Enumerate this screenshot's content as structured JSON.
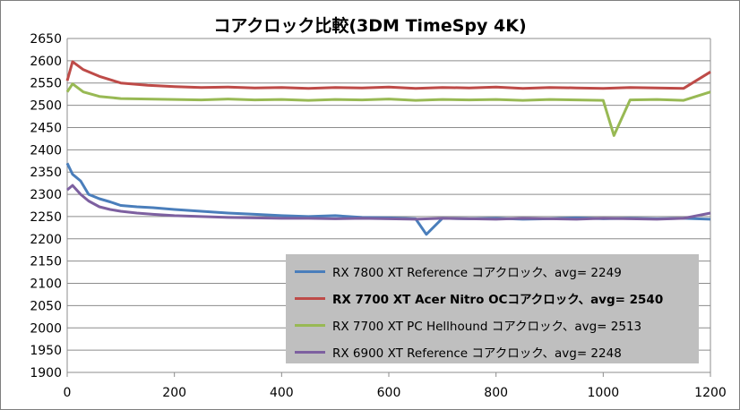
{
  "chart_data": {
    "type": "line",
    "title": "コアクロック比較(3DM TimeSpy 4K)",
    "xlabel": "",
    "ylabel": "",
    "xlim": [
      0,
      1200
    ],
    "ylim": [
      1900,
      2650
    ],
    "x_ticks": [
      "0",
      "200",
      "400",
      "600",
      "800",
      "1000",
      "1200"
    ],
    "y_ticks": [
      "2650",
      "2600",
      "2550",
      "2500",
      "2450",
      "2400",
      "2350",
      "2300",
      "2250",
      "2200",
      "2150",
      "2100",
      "2050",
      "2000",
      "1950",
      "1900"
    ],
    "grid": "horizontal",
    "legend_position": "bottom-right",
    "series": [
      {
        "name": "RX 7800 XT Reference コアクロック、avg= 2249",
        "color": "#4a7ebb",
        "bold": false,
        "x": [
          0,
          10,
          25,
          40,
          60,
          80,
          100,
          130,
          160,
          200,
          250,
          300,
          350,
          400,
          450,
          500,
          550,
          600,
          650,
          670,
          700,
          750,
          800,
          850,
          900,
          950,
          1000,
          1050,
          1100,
          1150,
          1200
        ],
        "y": [
          2370,
          2345,
          2330,
          2300,
          2290,
          2283,
          2275,
          2272,
          2270,
          2266,
          2262,
          2258,
          2255,
          2252,
          2250,
          2252,
          2248,
          2247,
          2245,
          2210,
          2246,
          2245,
          2246,
          2244,
          2245,
          2247,
          2245,
          2246,
          2245,
          2246,
          2244
        ]
      },
      {
        "name": "RX 7700 XT Acer Nitro OCコアクロック、avg= 2540",
        "color": "#be4b48",
        "bold": true,
        "x": [
          0,
          10,
          30,
          60,
          100,
          150,
          200,
          250,
          300,
          350,
          400,
          450,
          500,
          550,
          600,
          650,
          700,
          750,
          800,
          850,
          900,
          950,
          1000,
          1050,
          1100,
          1150,
          1200
        ],
        "y": [
          2555,
          2598,
          2580,
          2565,
          2550,
          2545,
          2542,
          2540,
          2541,
          2539,
          2540,
          2538,
          2540,
          2539,
          2541,
          2538,
          2540,
          2539,
          2541,
          2538,
          2540,
          2539,
          2538,
          2540,
          2539,
          2538,
          2575
        ]
      },
      {
        "name": "RX 7700 XT PC Hellhound コアクロック、avg= 2513",
        "color": "#98b954",
        "bold": false,
        "x": [
          0,
          10,
          30,
          60,
          100,
          150,
          200,
          250,
          300,
          350,
          400,
          450,
          500,
          550,
          600,
          650,
          700,
          750,
          800,
          850,
          900,
          950,
          1000,
          1020,
          1050,
          1100,
          1150,
          1200
        ],
        "y": [
          2530,
          2548,
          2530,
          2520,
          2515,
          2514,
          2513,
          2512,
          2514,
          2512,
          2513,
          2511,
          2513,
          2512,
          2514,
          2511,
          2513,
          2512,
          2513,
          2511,
          2513,
          2512,
          2511,
          2432,
          2512,
          2513,
          2511,
          2530
        ]
      },
      {
        "name": "RX 6900 XT Reference コアクロック、avg= 2248",
        "color": "#7d60a0",
        "bold": false,
        "x": [
          0,
          10,
          25,
          40,
          60,
          80,
          100,
          130,
          160,
          200,
          250,
          300,
          350,
          400,
          450,
          500,
          550,
          600,
          650,
          700,
          750,
          800,
          850,
          900,
          950,
          1000,
          1050,
          1100,
          1150,
          1200
        ],
        "y": [
          2310,
          2320,
          2300,
          2285,
          2272,
          2266,
          2262,
          2258,
          2255,
          2252,
          2250,
          2248,
          2247,
          2246,
          2246,
          2245,
          2246,
          2245,
          2244,
          2246,
          2245,
          2244,
          2246,
          2245,
          2244,
          2246,
          2245,
          2244,
          2246,
          2258
        ]
      }
    ]
  }
}
